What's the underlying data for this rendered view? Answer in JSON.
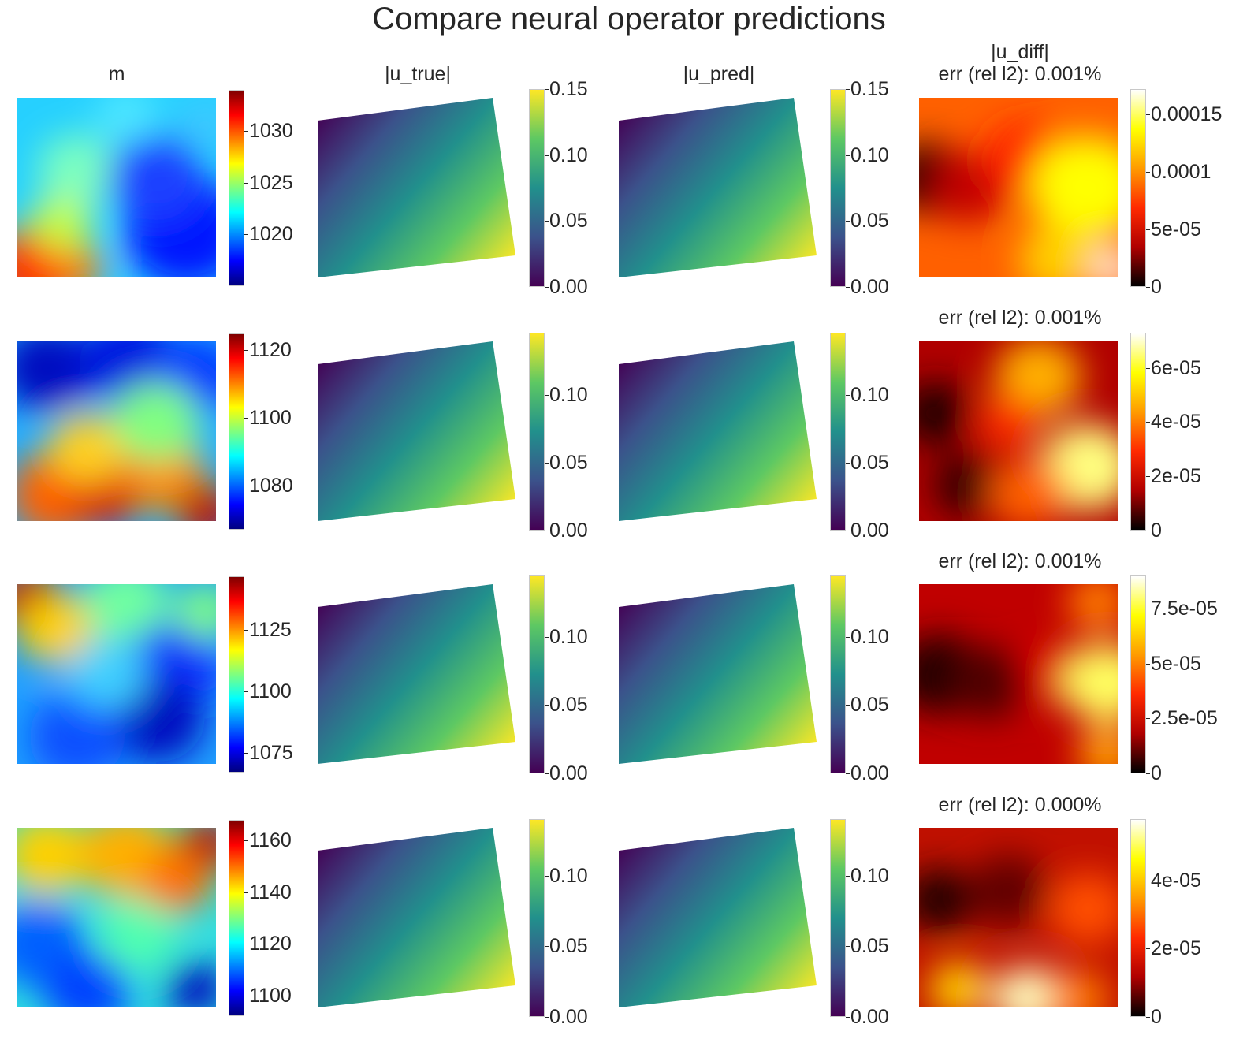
{
  "title": "Compare neural operator predictions",
  "colors": {
    "background": "#ffffff",
    "text": "#262626",
    "jet": [
      "#00007f",
      "#0000ff",
      "#007fff",
      "#00ffff",
      "#7fff7f",
      "#ffff00",
      "#ff7f00",
      "#ff0000",
      "#7f0000"
    ],
    "viridis": [
      "#440154",
      "#3b528b",
      "#21908c",
      "#5dc863",
      "#fde725"
    ],
    "hot": [
      "#000000",
      "#b00000",
      "#ff2a00",
      "#ff9b00",
      "#ffff00",
      "#ffffff"
    ]
  },
  "chart_data": {
    "type": "heatmap",
    "columns": [
      {
        "key": "m",
        "title": "m",
        "colormap": "jet"
      },
      {
        "key": "u_true",
        "title": "|u_true|",
        "colormap": "viridis"
      },
      {
        "key": "u_pred",
        "title": "|u_pred|",
        "colormap": "viridis"
      },
      {
        "key": "u_diff",
        "title": "|u_diff|",
        "colormap": "hot"
      }
    ],
    "rows": [
      {
        "m": {
          "colorbar_range": [
            1015,
            1034
          ],
          "ticks": [
            {
              "value": 1020,
              "label": "1020"
            },
            {
              "value": 1025,
              "label": "1025"
            },
            {
              "value": 1030,
              "label": "1030"
            }
          ]
        },
        "u_true": {
          "colorbar_range": [
            0,
            0.15
          ],
          "ticks": [
            {
              "value": 0,
              "label": "0.00"
            },
            {
              "value": 0.05,
              "label": "0.05"
            },
            {
              "value": 0.1,
              "label": "0.10"
            },
            {
              "value": 0.15,
              "label": "0.15"
            }
          ]
        },
        "u_pred": {
          "colorbar_range": [
            0,
            0.15
          ],
          "ticks": [
            {
              "value": 0,
              "label": "0.00"
            },
            {
              "value": 0.05,
              "label": "0.05"
            },
            {
              "value": 0.1,
              "label": "0.10"
            },
            {
              "value": 0.15,
              "label": "0.15"
            }
          ]
        },
        "u_diff": {
          "subtitle": "err (rel l2): 0.001%",
          "colorbar_range": [
            0,
            0.000172
          ],
          "ticks": [
            {
              "value": 0,
              "label": "0"
            },
            {
              "value": 5e-05,
              "label": "5e-05"
            },
            {
              "value": 0.0001,
              "label": "0.0001"
            },
            {
              "value": 0.00015,
              "label": "0.00015"
            }
          ]
        }
      },
      {
        "m": {
          "colorbar_range": [
            1067,
            1125
          ],
          "ticks": [
            {
              "value": 1080,
              "label": "1080"
            },
            {
              "value": 1100,
              "label": "1100"
            },
            {
              "value": 1120,
              "label": "1120"
            }
          ]
        },
        "u_true": {
          "colorbar_range": [
            0,
            0.146
          ],
          "ticks": [
            {
              "value": 0,
              "label": "0.00"
            },
            {
              "value": 0.05,
              "label": "0.05"
            },
            {
              "value": 0.1,
              "label": "0.10"
            }
          ]
        },
        "u_pred": {
          "colorbar_range": [
            0,
            0.146
          ],
          "ticks": [
            {
              "value": 0,
              "label": "0.00"
            },
            {
              "value": 0.05,
              "label": "0.05"
            },
            {
              "value": 0.1,
              "label": "0.10"
            }
          ]
        },
        "u_diff": {
          "subtitle": "err (rel l2): 0.001%",
          "colorbar_range": [
            0,
            7.3e-05
          ],
          "ticks": [
            {
              "value": 0,
              "label": "0"
            },
            {
              "value": 2e-05,
              "label": "2e-05"
            },
            {
              "value": 4e-05,
              "label": "4e-05"
            },
            {
              "value": 6e-05,
              "label": "6e-05"
            }
          ]
        }
      },
      {
        "m": {
          "colorbar_range": [
            1067,
            1147
          ],
          "ticks": [
            {
              "value": 1075,
              "label": "1075"
            },
            {
              "value": 1100,
              "label": "1100"
            },
            {
              "value": 1125,
              "label": "1125"
            }
          ]
        },
        "u_true": {
          "colorbar_range": [
            0,
            0.145
          ],
          "ticks": [
            {
              "value": 0,
              "label": "0.00"
            },
            {
              "value": 0.05,
              "label": "0.05"
            },
            {
              "value": 0.1,
              "label": "0.10"
            }
          ]
        },
        "u_pred": {
          "colorbar_range": [
            0,
            0.145
          ],
          "ticks": [
            {
              "value": 0,
              "label": "0.00"
            },
            {
              "value": 0.05,
              "label": "0.05"
            },
            {
              "value": 0.1,
              "label": "0.10"
            }
          ]
        },
        "u_diff": {
          "subtitle": "err (rel l2): 0.001%",
          "colorbar_range": [
            0,
            9e-05
          ],
          "ticks": [
            {
              "value": 0,
              "label": "0"
            },
            {
              "value": 2.5e-05,
              "label": "2.5e-05"
            },
            {
              "value": 5e-05,
              "label": "5e-05"
            },
            {
              "value": 7.5e-05,
              "label": "7.5e-05"
            }
          ]
        }
      },
      {
        "m": {
          "colorbar_range": [
            1092,
            1168
          ],
          "ticks": [
            {
              "value": 1100,
              "label": "1100"
            },
            {
              "value": 1120,
              "label": "1120"
            },
            {
              "value": 1140,
              "label": "1140"
            },
            {
              "value": 1160,
              "label": "1160"
            }
          ]
        },
        "u_true": {
          "colorbar_range": [
            0,
            0.14
          ],
          "ticks": [
            {
              "value": 0,
              "label": "0.00"
            },
            {
              "value": 0.05,
              "label": "0.05"
            },
            {
              "value": 0.1,
              "label": "0.10"
            }
          ]
        },
        "u_pred": {
          "colorbar_range": [
            0,
            0.14
          ],
          "ticks": [
            {
              "value": 0,
              "label": "0.00"
            },
            {
              "value": 0.05,
              "label": "0.05"
            },
            {
              "value": 0.1,
              "label": "0.10"
            }
          ]
        },
        "u_diff": {
          "subtitle": "err (rel l2): 0.000%",
          "colorbar_range": [
            0,
            5.8e-05
          ],
          "ticks": [
            {
              "value": 0,
              "label": "0"
            },
            {
              "value": 2e-05,
              "label": "2e-05"
            },
            {
              "value": 4e-05,
              "label": "4e-05"
            }
          ]
        }
      }
    ]
  }
}
